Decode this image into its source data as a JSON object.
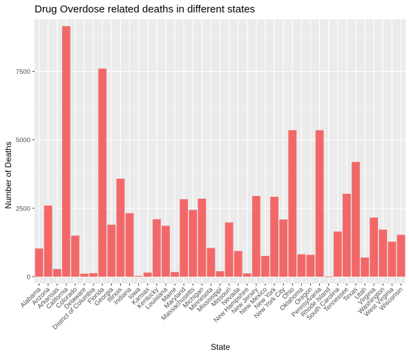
{
  "chart_data": {
    "type": "bar",
    "title": "Drug Overdose related deaths in different states",
    "xlabel": "State",
    "ylabel": "Number of Deaths",
    "ylim": [
      -250,
      9400
    ],
    "yticks": [
      0,
      2500,
      5000,
      7500
    ],
    "ytick_labels": [
      "0",
      "2500",
      "5000",
      "7500"
    ],
    "grid": true,
    "bar_color": "#f26869",
    "panel_color": "#ebebeb",
    "categories": [
      "Alabama",
      "Arizona",
      "Arkansas",
      "California",
      "Colorado",
      "Delaware",
      "District of Columbia",
      "Florida",
      "Georgia",
      "Illinois",
      "Indiana",
      "Iowa",
      "Kansas",
      "Kentucky",
      "Louisiana",
      "Maine",
      "Maryland",
      "Massachusetts",
      "Michigan",
      "Minnesota",
      "Mississippi",
      "Missouri",
      "Nevada",
      "New Hampshire",
      "New Jersey",
      "New Mexico",
      "New York",
      "New York City",
      "Ohio",
      "Oklahoma",
      "Oregon",
      "Pennsylvania",
      "Rhode Island",
      "South Carolina",
      "Tennessee",
      "Texas",
      "Utah",
      "Virginia",
      "Washington",
      "West Virginia",
      "Wisconsin"
    ],
    "values": [
      1030,
      2600,
      280,
      9150,
      1500,
      110,
      130,
      7600,
      1900,
      3580,
      2320,
      30,
      150,
      2100,
      1860,
      170,
      2830,
      2440,
      2850,
      1050,
      200,
      1980,
      940,
      120,
      2950,
      760,
      2920,
      2090,
      5350,
      820,
      800,
      5350,
      10,
      1650,
      3030,
      4190,
      700,
      2160,
      1720,
      1280,
      1530
    ]
  }
}
